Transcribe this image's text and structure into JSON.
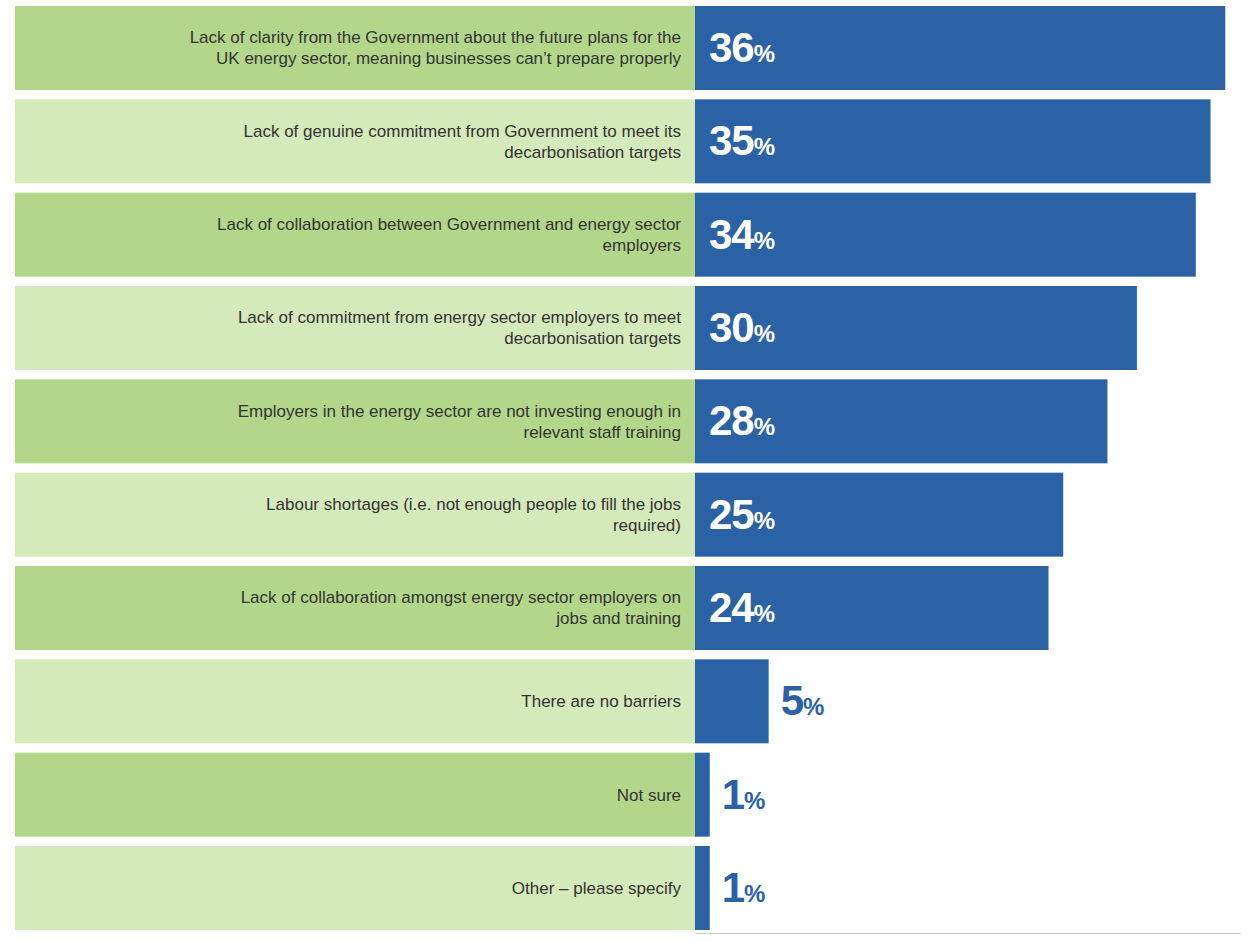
{
  "chart_data": {
    "type": "bar",
    "orientation": "horizontal",
    "categories": [
      "Lack of clarity from the Government about the future plans for the UK energy sector, meaning businesses can’t prepare properly",
      "Lack of genuine commitment from Government to meet its decarbonisation targets",
      "Lack of collaboration between Government and energy sector employers",
      "Lack of commitment from energy sector employers to meet decarbonisation targets",
      "Employers in the energy sector are not investing enough in relevant staff training",
      "Labour shortages (i.e. not enough people to fill the jobs required)",
      "Lack of collaboration amongst energy sector employers on jobs and training",
      "There are no barriers",
      "Not sure",
      "Other – please specify"
    ],
    "values": [
      36,
      35,
      34,
      30,
      28,
      25,
      24,
      5,
      1,
      1
    ],
    "value_labels": [
      "36%",
      "35%",
      "34%",
      "30%",
      "28%",
      "25%",
      "24%",
      "5%",
      "1%",
      "1%"
    ],
    "data_labels": true,
    "color": "#2b62a6",
    "xlim": [
      0,
      37
    ],
    "tick_labels": false,
    "grid": false
  }
}
